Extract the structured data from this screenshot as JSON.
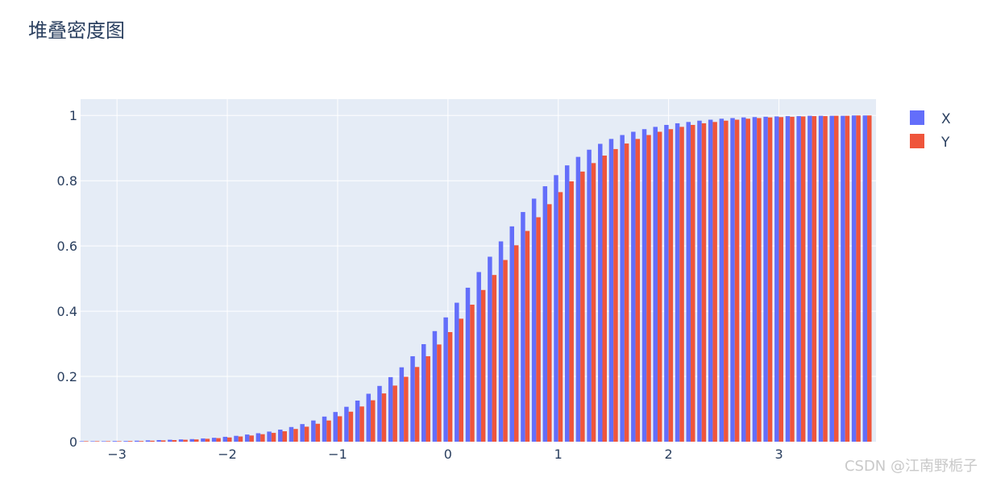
{
  "chart_data": {
    "type": "bar",
    "title": "堆叠密度图",
    "barmode": "group",
    "xlim": [
      -3.33,
      3.88
    ],
    "ylim": [
      0,
      1.05
    ],
    "x_ticks": [
      -3,
      -2,
      -1,
      0,
      1,
      2,
      3
    ],
    "x_tick_labels": [
      "−3",
      "−2",
      "−1",
      "0",
      "1",
      "2",
      "3"
    ],
    "y_ticks": [
      0,
      0.2,
      0.4,
      0.6,
      0.8,
      1
    ],
    "y_tick_labels": [
      "0",
      "0.2",
      "0.4",
      "0.6",
      "0.8",
      "1"
    ],
    "grid": true,
    "legend_position": "top-right",
    "bin_start": -3.3,
    "bin_width": 0.1,
    "series": [
      {
        "name": "X",
        "color": "#636efa",
        "values": [
          0.001,
          0.001,
          0.001,
          0.002,
          0.002,
          0.003,
          0.004,
          0.005,
          0.006,
          0.007,
          0.008,
          0.01,
          0.012,
          0.015,
          0.018,
          0.022,
          0.026,
          0.031,
          0.037,
          0.045,
          0.054,
          0.065,
          0.077,
          0.091,
          0.107,
          0.126,
          0.147,
          0.171,
          0.198,
          0.228,
          0.262,
          0.299,
          0.339,
          0.381,
          0.426,
          0.472,
          0.52,
          0.567,
          0.614,
          0.66,
          0.704,
          0.745,
          0.783,
          0.817,
          0.847,
          0.873,
          0.895,
          0.913,
          0.928,
          0.94,
          0.95,
          0.958,
          0.965,
          0.971,
          0.976,
          0.98,
          0.984,
          0.987,
          0.99,
          0.992,
          0.994,
          0.995,
          0.996,
          0.997,
          0.998,
          0.998,
          0.999,
          0.999,
          0.999,
          0.999,
          1,
          1
        ]
      },
      {
        "name": "Y",
        "color": "#ef553b",
        "values": [
          0.001,
          0.001,
          0.001,
          0.001,
          0.002,
          0.002,
          0.003,
          0.004,
          0.005,
          0.006,
          0.007,
          0.009,
          0.011,
          0.013,
          0.016,
          0.019,
          0.023,
          0.027,
          0.032,
          0.039,
          0.046,
          0.055,
          0.065,
          0.078,
          0.092,
          0.108,
          0.127,
          0.148,
          0.172,
          0.199,
          0.229,
          0.262,
          0.298,
          0.336,
          0.377,
          0.42,
          0.465,
          0.511,
          0.557,
          0.602,
          0.646,
          0.688,
          0.728,
          0.765,
          0.798,
          0.828,
          0.854,
          0.877,
          0.897,
          0.914,
          0.928,
          0.94,
          0.95,
          0.958,
          0.965,
          0.971,
          0.976,
          0.98,
          0.984,
          0.987,
          0.99,
          0.992,
          0.994,
          0.995,
          0.996,
          0.997,
          0.998,
          0.998,
          0.999,
          0.999,
          1,
          1
        ]
      }
    ]
  },
  "watermark": "CSDN @江南野栀子"
}
